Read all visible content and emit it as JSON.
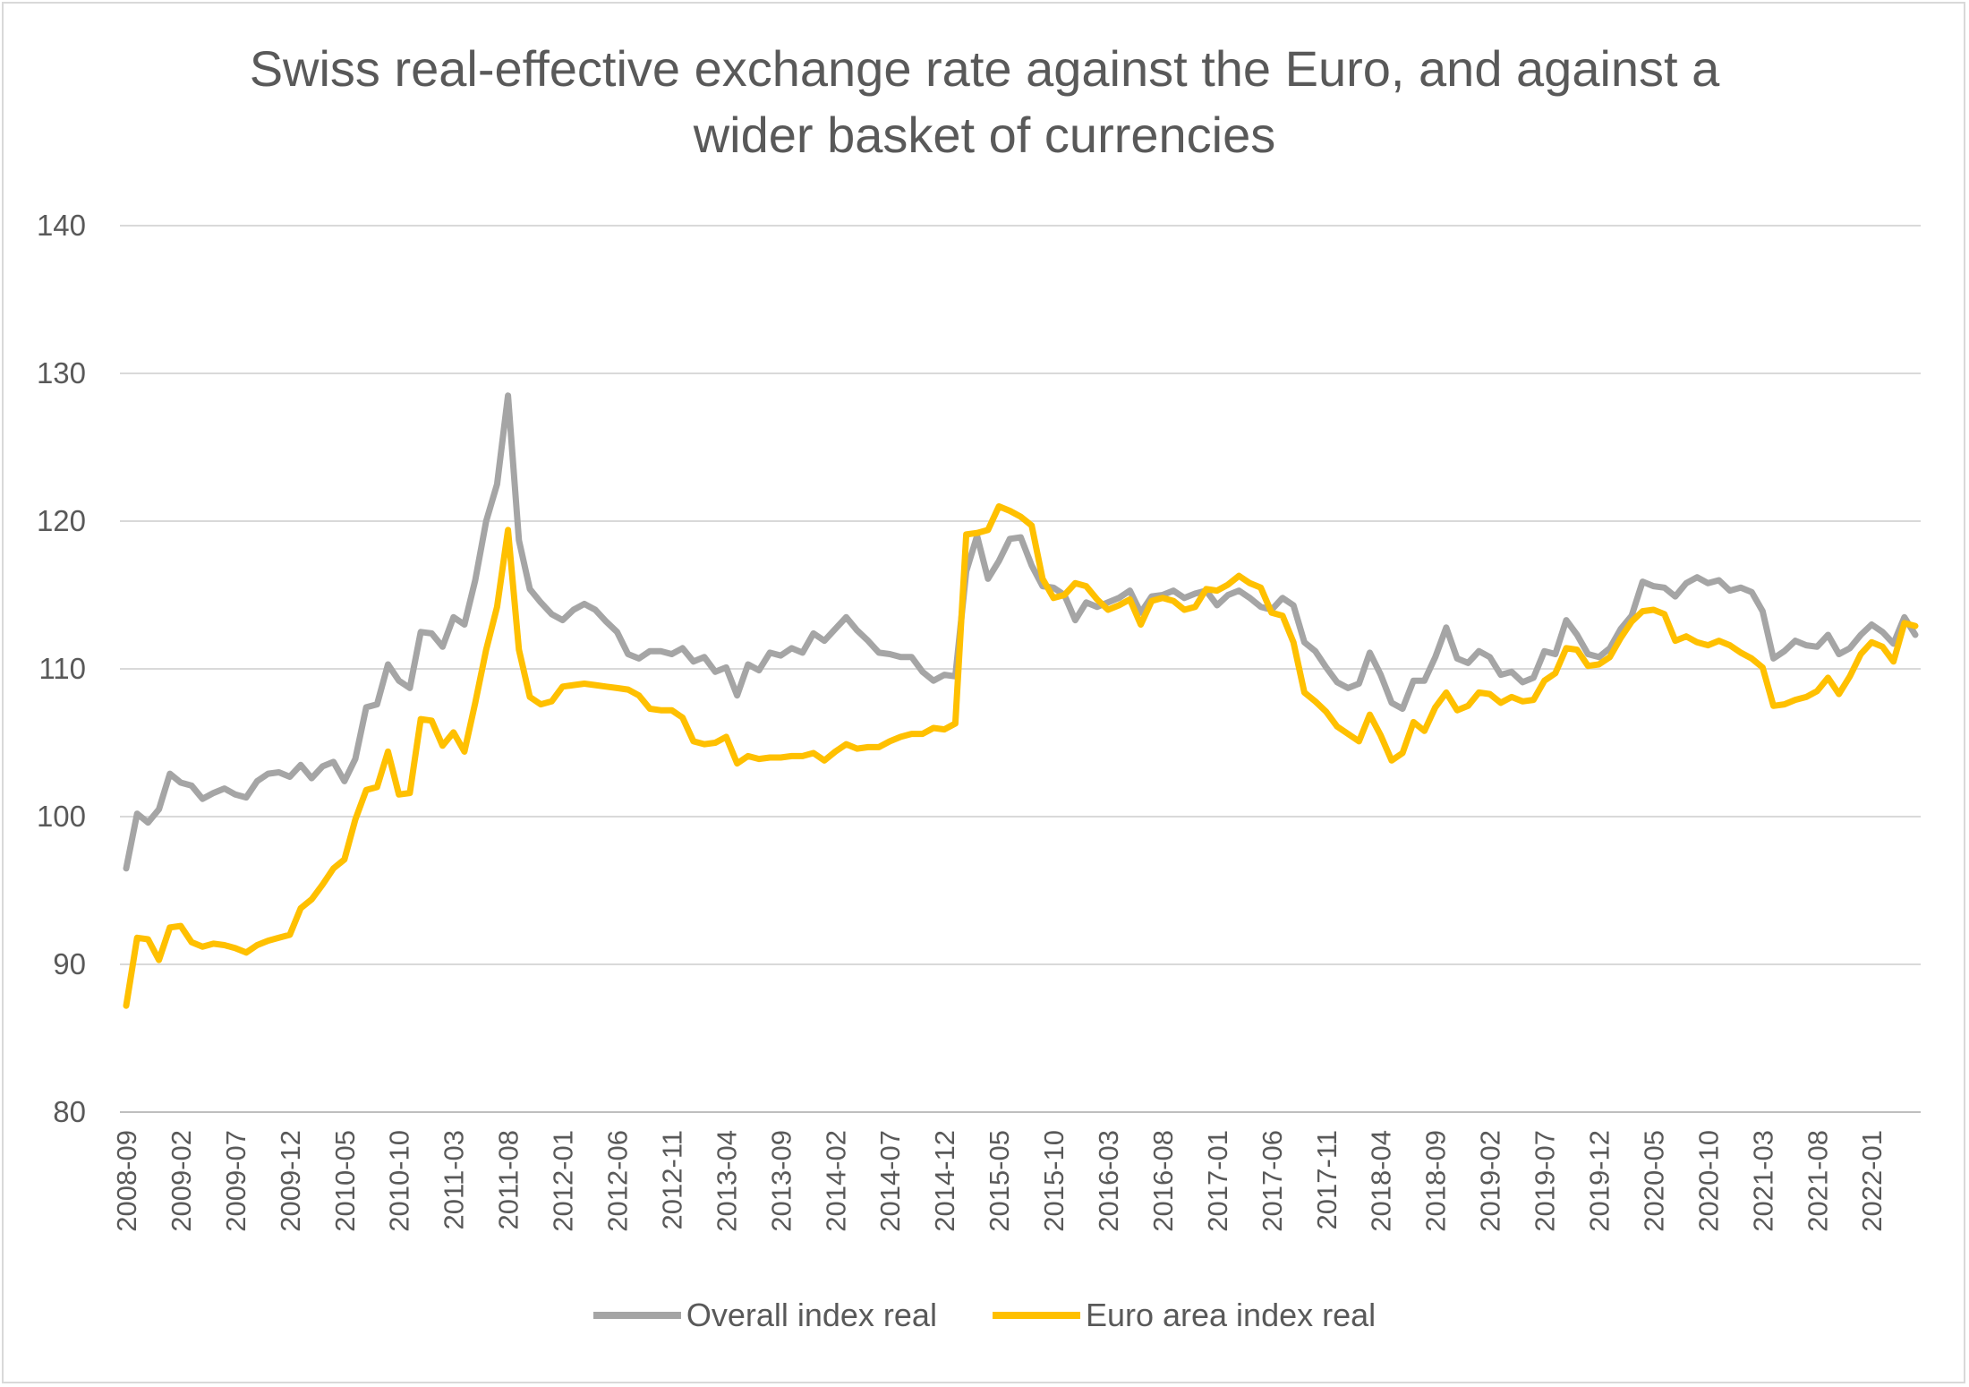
{
  "chart_data": {
    "type": "line",
    "title_lines": [
      "Swiss real-effective exchange rate against the Euro, and against a",
      "wider basket of currencies"
    ],
    "xlabel": "",
    "ylabel": "",
    "ylim": [
      80,
      140
    ],
    "yticks": [
      80,
      90,
      100,
      110,
      120,
      130,
      140
    ],
    "grid": "horizontal",
    "legend": "bottom",
    "x_tick_labels": [
      "2008-09",
      "2009-02",
      "2009-07",
      "2009-12",
      "2010-05",
      "2010-10",
      "2011-03",
      "2011-08",
      "2012-01",
      "2012-06",
      "2012-11",
      "2013-04",
      "2013-09",
      "2014-02",
      "2014-07",
      "2014-12",
      "2015-05",
      "2015-10",
      "2016-03",
      "2016-08",
      "2017-01",
      "2017-06",
      "2017-11",
      "2018-04",
      "2018-09",
      "2019-02",
      "2019-07",
      "2019-12",
      "2020-05",
      "2020-10",
      "2021-03",
      "2021-08",
      "2022-01"
    ],
    "x_start": "2008-09",
    "series": [
      {
        "name": "Overall index real",
        "color": "#a5a5a5",
        "values": [
          96.5,
          100.2,
          99.6,
          100.5,
          102.9,
          102.3,
          102.1,
          101.2,
          101.6,
          101.9,
          101.5,
          101.3,
          102.4,
          102.9,
          103.0,
          102.7,
          103.5,
          102.6,
          103.4,
          103.7,
          102.4,
          103.9,
          107.4,
          107.6,
          110.3,
          109.2,
          108.7,
          112.5,
          112.4,
          111.5,
          113.5,
          113.0,
          116.0,
          120.0,
          122.5,
          128.5,
          118.7,
          115.4,
          114.5,
          113.7,
          113.3,
          114.0,
          114.4,
          114.0,
          113.2,
          112.5,
          111.0,
          110.7,
          111.2,
          111.2,
          111.0,
          111.4,
          110.5,
          110.8,
          109.8,
          110.1,
          108.2,
          110.3,
          109.9,
          111.1,
          110.9,
          111.4,
          111.1,
          112.4,
          111.9,
          112.7,
          113.5,
          112.6,
          111.9,
          111.1,
          111.0,
          110.8,
          110.8,
          109.8,
          109.2,
          109.6,
          109.5,
          116.6,
          119.0,
          116.1,
          117.3,
          118.8,
          118.9,
          117.0,
          115.6,
          115.5,
          115.0,
          113.3,
          114.5,
          114.2,
          114.5,
          114.8,
          115.3,
          113.8,
          114.9,
          115.0,
          115.3,
          114.8,
          115.1,
          115.3,
          114.3,
          115.0,
          115.3,
          114.8,
          114.2,
          114.0,
          114.8,
          114.3,
          111.8,
          111.2,
          110.1,
          109.1,
          108.7,
          109.0,
          111.1,
          109.6,
          107.7,
          107.3,
          109.2,
          109.2,
          110.8,
          112.8,
          110.7,
          110.4,
          111.2,
          110.8,
          109.6,
          109.8,
          109.1,
          109.4,
          111.2,
          111.0,
          113.3,
          112.3,
          111.0,
          110.8,
          111.4,
          112.7,
          113.6,
          115.9,
          115.6,
          115.5,
          114.9,
          115.8,
          116.2,
          115.8,
          116.0,
          115.3,
          115.5,
          115.2,
          113.9,
          110.7,
          111.2,
          111.9,
          111.6,
          111.5,
          112.3,
          111.0,
          111.4,
          112.3,
          113.0,
          112.5,
          111.7,
          113.5,
          112.3
        ]
      },
      {
        "name": "Euro area index real",
        "color": "#ffc000",
        "values": [
          87.2,
          91.8,
          91.7,
          90.3,
          92.5,
          92.6,
          91.5,
          91.2,
          91.4,
          91.3,
          91.1,
          90.8,
          91.3,
          91.6,
          91.8,
          92.0,
          93.8,
          94.4,
          95.4,
          96.5,
          97.1,
          99.8,
          101.8,
          102.0,
          104.4,
          101.5,
          101.6,
          106.6,
          106.5,
          104.8,
          105.7,
          104.4,
          107.7,
          111.3,
          114.2,
          119.4,
          111.3,
          108.1,
          107.6,
          107.8,
          108.8,
          108.9,
          109.0,
          108.9,
          108.8,
          108.7,
          108.6,
          108.2,
          107.3,
          107.2,
          107.2,
          106.7,
          105.1,
          104.9,
          105.0,
          105.4,
          103.6,
          104.1,
          103.9,
          104.0,
          104.0,
          104.1,
          104.1,
          104.3,
          103.8,
          104.4,
          104.9,
          104.6,
          104.7,
          104.7,
          105.1,
          105.4,
          105.6,
          105.6,
          106.0,
          105.9,
          106.3,
          119.1,
          119.2,
          119.4,
          121.0,
          120.7,
          120.3,
          119.7,
          116.1,
          114.8,
          115.0,
          115.8,
          115.6,
          114.7,
          114.0,
          114.3,
          114.7,
          113.0,
          114.6,
          114.8,
          114.6,
          114.0,
          114.2,
          115.4,
          115.3,
          115.7,
          116.3,
          115.8,
          115.5,
          113.8,
          113.6,
          111.8,
          108.4,
          107.8,
          107.1,
          106.1,
          105.6,
          105.1,
          106.9,
          105.5,
          103.8,
          104.3,
          106.4,
          105.8,
          107.4,
          108.4,
          107.2,
          107.5,
          108.4,
          108.3,
          107.7,
          108.1,
          107.8,
          107.9,
          109.2,
          109.7,
          111.4,
          111.3,
          110.2,
          110.3,
          110.8,
          112.1,
          113.2,
          113.9,
          114.0,
          113.7,
          111.9,
          112.2,
          111.8,
          111.6,
          111.9,
          111.6,
          111.1,
          110.7,
          110.1,
          107.5,
          107.6,
          107.9,
          108.1,
          108.5,
          109.4,
          108.3,
          109.5,
          111.0,
          111.8,
          111.5,
          110.5,
          113.1,
          112.9
        ]
      }
    ]
  }
}
